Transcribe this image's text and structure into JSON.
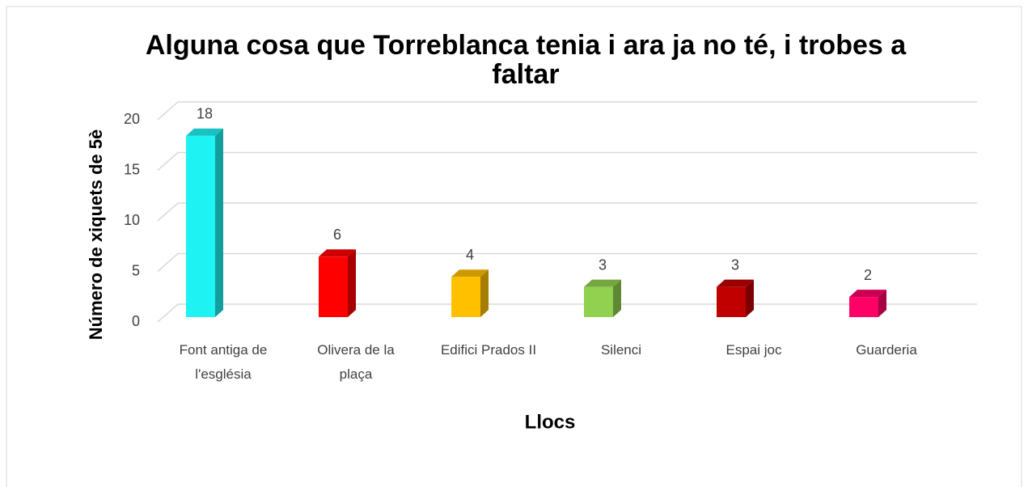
{
  "chart_data": {
    "type": "bar3d",
    "title": "Alguna cosa que Torreblanca tenia i ara ja no té, i trobes a faltar",
    "x_label": "Llocs",
    "y_label": "Número de xiquets de 5è",
    "categories": [
      "Font antiga de l'església",
      "Olivera de la plaça",
      "Edifici Prados II",
      "Silenci",
      "Espai joc",
      "Guarderia"
    ],
    "values": [
      18,
      6,
      4,
      3,
      3,
      2
    ],
    "colors": [
      "#1ff2f2",
      "#ff0000",
      "#ffc000",
      "#92d050",
      "#c00000",
      "#ff0066"
    ],
    "ylim": [
      0,
      20
    ],
    "yticks": [
      0,
      5,
      10,
      15,
      20
    ],
    "grid": true
  }
}
